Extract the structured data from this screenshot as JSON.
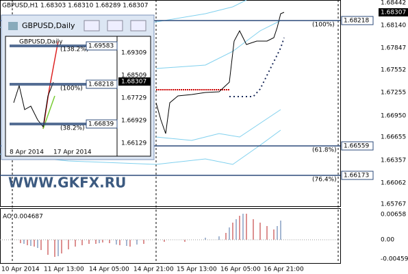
{
  "header": {
    "title": "GBPUSD,H1  1.68303 1.68310 1.68289 1.68307"
  },
  "price_axis": {
    "labels": [
      "1.68442",
      "1.68140",
      "1.67847",
      "1.67552",
      "1.67255",
      "1.66950",
      "1.66655",
      "1.66357",
      "1.66062",
      "1.65767"
    ],
    "current": "1.68307"
  },
  "levels": [
    {
      "percent": "(100%)",
      "price": "1.68218"
    },
    {
      "percent": "(61.8%)",
      "price": "1.66559"
    },
    {
      "percent": "(76.4%)",
      "price": "1.66173"
    }
  ],
  "watermark": "WWW.GKFX.RU",
  "indicator": {
    "title": "AO 0.004687",
    "labels": [
      "0.00658",
      "0.00",
      "-0.00459"
    ]
  },
  "x_axis": {
    "labels": [
      "10 Apr 2014",
      "11 Apr 13:00",
      "14 Apr 05:00",
      "14 Apr 21:00",
      "15 Apr 13:00",
      "16 Apr 05:00",
      "16 Apr 21:00"
    ]
  },
  "inset": {
    "window_title": "GBPUSD,Daily",
    "chart_title": "GBPUSD,Daily",
    "price_labels": [
      "1.69309",
      "1.68509",
      "1.67729",
      "1.66929",
      "1.66129"
    ],
    "current": "1.68307",
    "levels": [
      {
        "percent": "(138.2%)",
        "price": "1.69583"
      },
      {
        "percent": "(100%)",
        "price": "1.68218"
      },
      {
        "percent": "(38.2%)",
        "price": "1.66839"
      }
    ],
    "x_labels": [
      "8 Apr 2014",
      "17 Apr 2014"
    ]
  }
}
